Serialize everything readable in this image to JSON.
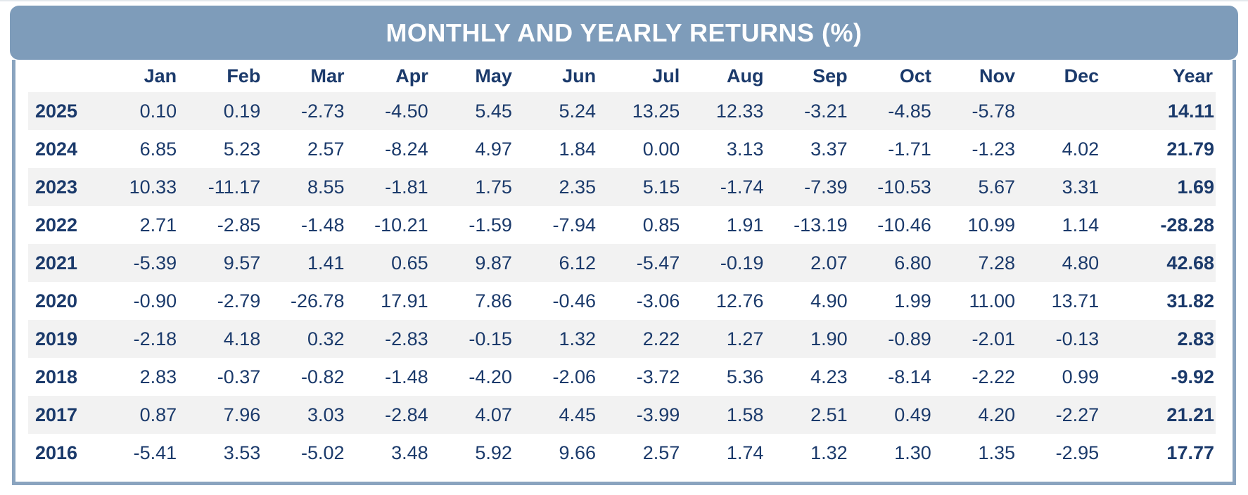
{
  "colors": {
    "banner_blue": "#7e9cba",
    "frame_border_blue": "#8aa4bf",
    "text_navy": "#1b3a6b",
    "row_stripe_gray": "#f2f2f2",
    "title_text_white": "#ffffff"
  },
  "chart_data": {
    "type": "table",
    "title": "MONTHLY AND YEARLY RETURNS (%)",
    "columns": [
      "",
      "Jan",
      "Feb",
      "Mar",
      "Apr",
      "May",
      "Jun",
      "Jul",
      "Aug",
      "Sep",
      "Oct",
      "Nov",
      "Dec",
      "Year"
    ],
    "layout": {
      "striped_rows": "odd rows shaded light gray",
      "numeric_alignment": "right",
      "year_label_alignment": "left"
    },
    "rows": [
      {
        "year": "2025",
        "monthly": [
          "0.10",
          "0.19",
          "-2.73",
          "-4.50",
          "5.45",
          "5.24",
          "13.25",
          "12.33",
          "-3.21",
          "-4.85",
          "-5.78",
          ""
        ],
        "year_total": "14.11"
      },
      {
        "year": "2024",
        "monthly": [
          "6.85",
          "5.23",
          "2.57",
          "-8.24",
          "4.97",
          "1.84",
          "0.00",
          "3.13",
          "3.37",
          "-1.71",
          "-1.23",
          "4.02"
        ],
        "year_total": "21.79"
      },
      {
        "year": "2023",
        "monthly": [
          "10.33",
          "-11.17",
          "8.55",
          "-1.81",
          "1.75",
          "2.35",
          "5.15",
          "-1.74",
          "-7.39",
          "-10.53",
          "5.67",
          "3.31"
        ],
        "year_total": "1.69"
      },
      {
        "year": "2022",
        "monthly": [
          "2.71",
          "-2.85",
          "-1.48",
          "-10.21",
          "-1.59",
          "-7.94",
          "0.85",
          "1.91",
          "-13.19",
          "-10.46",
          "10.99",
          "1.14"
        ],
        "year_total": "-28.28"
      },
      {
        "year": "2021",
        "monthly": [
          "-5.39",
          "9.57",
          "1.41",
          "0.65",
          "9.87",
          "6.12",
          "-5.47",
          "-0.19",
          "2.07",
          "6.80",
          "7.28",
          "4.80"
        ],
        "year_total": "42.68"
      },
      {
        "year": "2020",
        "monthly": [
          "-0.90",
          "-2.79",
          "-26.78",
          "17.91",
          "7.86",
          "-0.46",
          "-3.06",
          "12.76",
          "4.90",
          "1.99",
          "11.00",
          "13.71"
        ],
        "year_total": "31.82"
      },
      {
        "year": "2019",
        "monthly": [
          "-2.18",
          "4.18",
          "0.32",
          "-2.83",
          "-0.15",
          "1.32",
          "2.22",
          "1.27",
          "1.90",
          "-0.89",
          "-2.01",
          "-0.13"
        ],
        "year_total": "2.83"
      },
      {
        "year": "2018",
        "monthly": [
          "2.83",
          "-0.37",
          "-0.82",
          "-1.48",
          "-4.20",
          "-2.06",
          "-3.72",
          "5.36",
          "4.23",
          "-8.14",
          "-2.22",
          "0.99"
        ],
        "year_total": "-9.92"
      },
      {
        "year": "2017",
        "monthly": [
          "0.87",
          "7.96",
          "3.03",
          "-2.84",
          "4.07",
          "4.45",
          "-3.99",
          "1.58",
          "2.51",
          "0.49",
          "4.20",
          "-2.27"
        ],
        "year_total": "21.21"
      },
      {
        "year": "2016",
        "monthly": [
          "-5.41",
          "3.53",
          "-5.02",
          "3.48",
          "5.92",
          "9.66",
          "2.57",
          "1.74",
          "1.32",
          "1.30",
          "1.35",
          "-2.95"
        ],
        "year_total": "17.77"
      }
    ]
  }
}
